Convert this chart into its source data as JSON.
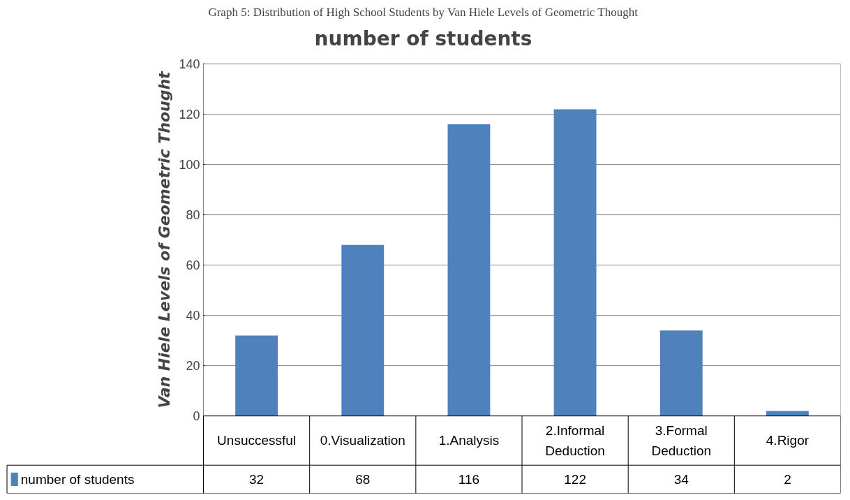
{
  "chart_data": {
    "type": "bar",
    "title": "number of students",
    "ylabel": "Van Hiele Levels of Geometric Thought",
    "annotations": [
      "Graph 5: Distribution of High School Students by Van Hiele Levels of Geometric Thought"
    ],
    "categories": [
      "Unsuccessful",
      "0.Visualization",
      "1.Analysis",
      "2.Informal Deduction",
      "3.Formal Deduction",
      "4.Rigor"
    ],
    "series": [
      {
        "name": "number of students",
        "color": "#4f81bd",
        "values": [
          32,
          68,
          116,
          122,
          34,
          2
        ]
      }
    ],
    "ylim": [
      0,
      140
    ],
    "yticks": [
      0,
      20,
      40,
      60,
      80,
      100,
      120,
      140
    ],
    "grid": "y",
    "legend": "bottom",
    "data_labels": true
  }
}
